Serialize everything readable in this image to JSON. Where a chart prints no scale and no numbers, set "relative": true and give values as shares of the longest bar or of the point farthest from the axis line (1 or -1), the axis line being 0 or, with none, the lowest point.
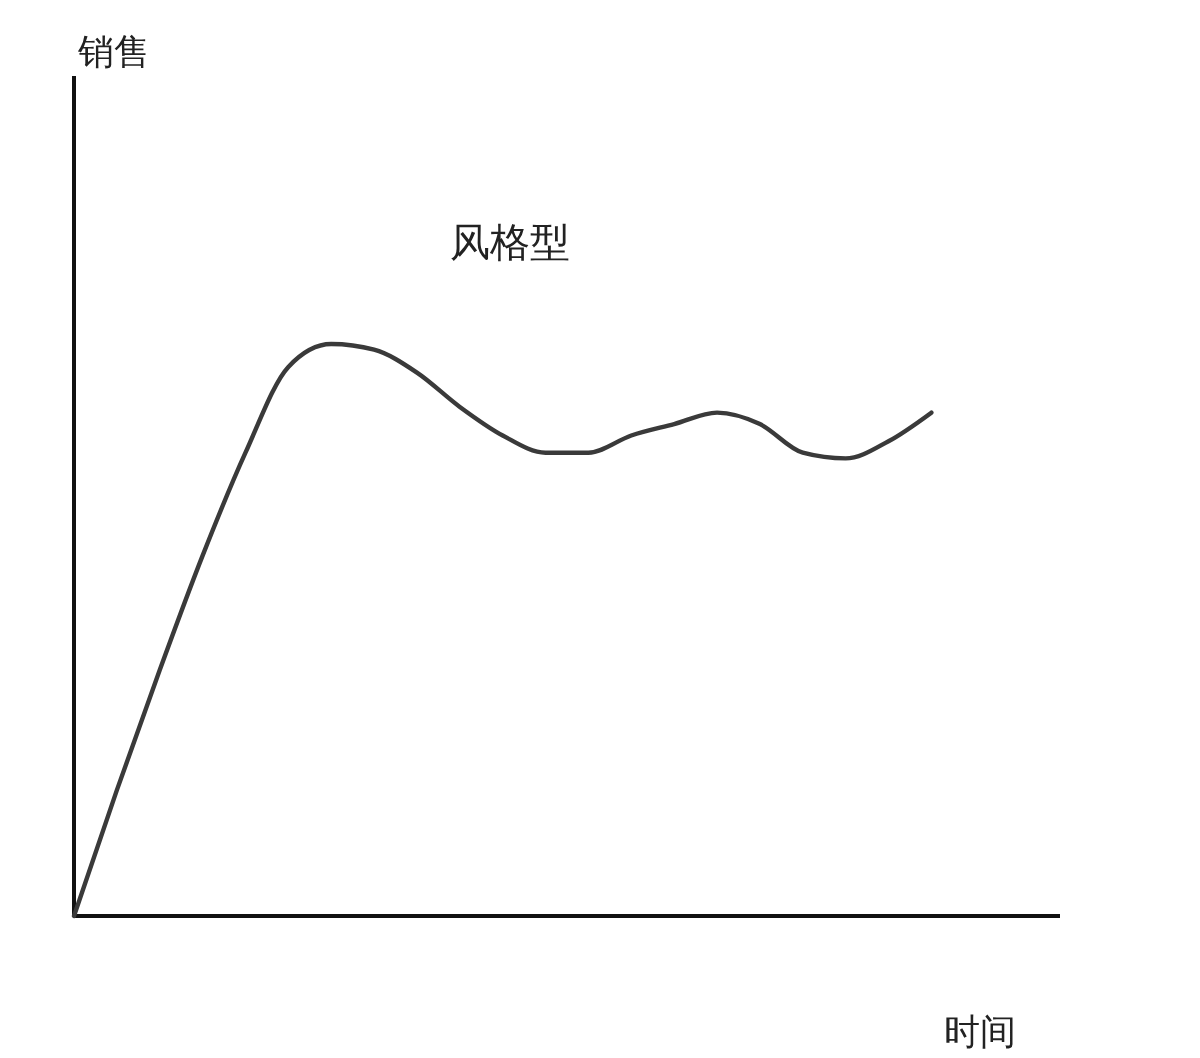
{
  "chart_data": {
    "type": "line",
    "title": "风格型",
    "xlabel": "时间",
    "annotations": [
      "销售"
    ],
    "relative": true,
    "categories": [
      null,
      null,
      null,
      null,
      null,
      null,
      null,
      null,
      null,
      null,
      null,
      null,
      null,
      null,
      null,
      null,
      null,
      null,
      null,
      null,
      null
    ],
    "series": [
      {
        "color": "#3a3a3a",
        "values": [
          0,
          0.22,
          0.43,
          0.63,
          0.81,
          0.96,
          1,
          0.99,
          0.95,
          0.89,
          0.84,
          0.81,
          0.81,
          0.84,
          0.86,
          0.88,
          0.86,
          0.81,
          0.8,
          0.83,
          0.88
        ]
      }
    ],
    "marker": "none",
    "line_style": "solid"
  }
}
